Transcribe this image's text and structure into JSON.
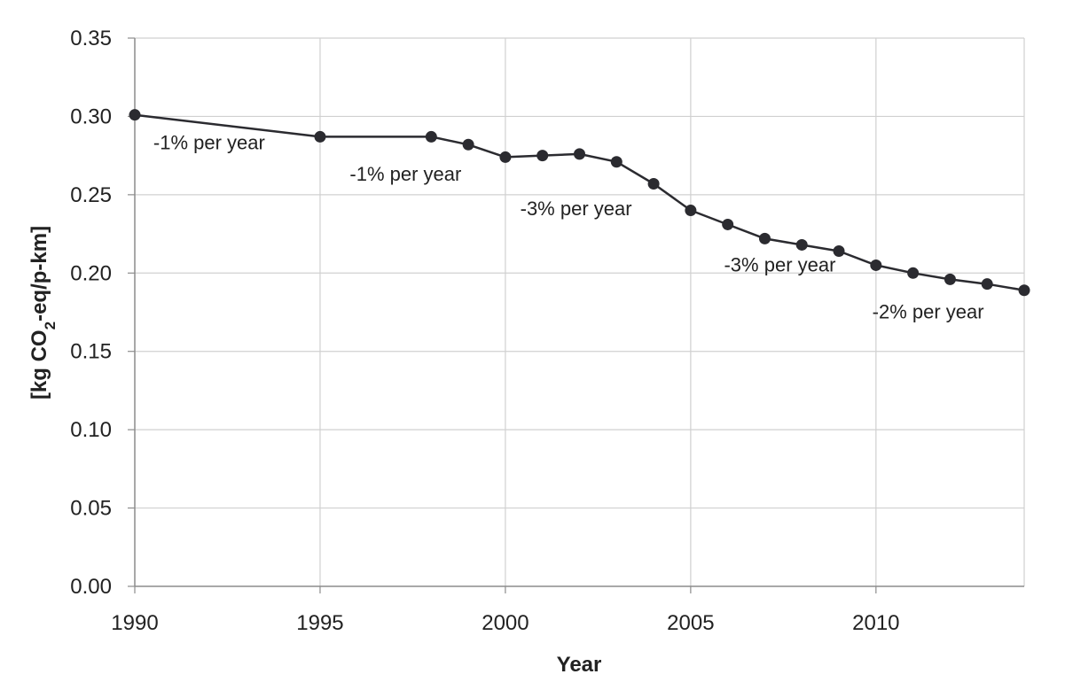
{
  "chart_data": {
    "type": "line",
    "title": "",
    "xlabel": "Year",
    "ylabel": {
      "prefix": "[kg CO",
      "subscript": "2",
      "suffix": "-eq/p-km]"
    },
    "xlim": [
      1990,
      2014
    ],
    "ylim": [
      0,
      0.35
    ],
    "x_ticks": [
      "1990",
      "1995",
      "2000",
      "2005",
      "2010"
    ],
    "y_ticks": [
      "0.00",
      "0.05",
      "0.10",
      "0.15",
      "0.20",
      "0.25",
      "0.30",
      "0.35"
    ],
    "grid": true,
    "legend": "none",
    "series": [
      {
        "x": [
          1990,
          1995,
          1998,
          1999,
          2000,
          2001,
          2002,
          2003,
          2004,
          2005,
          2006,
          2007,
          2008,
          2009,
          2010,
          2011,
          2012,
          2013,
          2014
        ],
        "y": [
          0.301,
          0.287,
          0.287,
          0.282,
          0.274,
          0.275,
          0.276,
          0.271,
          0.257,
          0.24,
          0.231,
          0.222,
          0.218,
          0.214,
          0.205,
          0.2,
          0.196,
          0.193,
          0.189
        ],
        "color": "#2b2b30"
      }
    ],
    "annotations": [
      {
        "text": "-1% per year",
        "x": 1990.5,
        "y": 0.279
      },
      {
        "text": "-1% per year",
        "x": 1995.8,
        "y": 0.259
      },
      {
        "text": "-3% per year",
        "x": 2000.4,
        "y": 0.237
      },
      {
        "text": "-3% per year",
        "x": 2005.9,
        "y": 0.201
      },
      {
        "text": "-2% per year",
        "x": 2009.9,
        "y": 0.171
      }
    ]
  },
  "colors": {
    "line": "#2b2b30",
    "grid": "#d0d0d0",
    "axis": "#8c8c8c",
    "text": "#222222"
  }
}
